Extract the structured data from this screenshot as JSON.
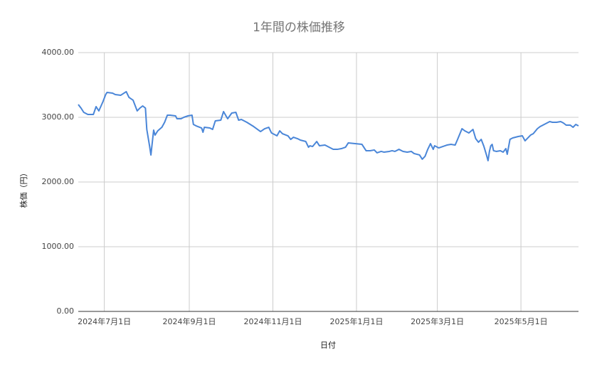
{
  "chart_data": {
    "type": "line",
    "title": "1年間の株価推移",
    "x_label": "日付",
    "y_label": "株価（円）",
    "x": [
      "2024-06-12",
      "2024-06-14",
      "2024-06-16",
      "2024-06-19",
      "2024-06-23",
      "2024-06-25",
      "2024-06-27",
      "2024-06-30",
      "2024-07-02",
      "2024-07-03",
      "2024-07-07",
      "2024-07-09",
      "2024-07-13",
      "2024-07-17",
      "2024-07-19",
      "2024-07-22",
      "2024-07-25",
      "2024-07-27",
      "2024-07-29",
      "2024-07-31",
      "2024-08-01",
      "2024-08-03",
      "2024-08-04",
      "2024-08-06",
      "2024-08-07",
      "2024-08-09",
      "2024-08-12",
      "2024-08-14",
      "2024-08-16",
      "2024-08-18",
      "2024-08-22",
      "2024-08-23",
      "2024-08-26",
      "2024-08-28",
      "2024-08-31",
      "2024-09-03",
      "2024-09-04",
      "2024-09-06",
      "2024-09-10",
      "2024-09-11",
      "2024-09-12",
      "2024-09-16",
      "2024-09-18",
      "2024-09-20",
      "2024-09-24",
      "2024-09-26",
      "2024-09-29",
      "2024-10-02",
      "2024-10-05",
      "2024-10-07",
      "2024-10-09",
      "2024-10-13",
      "2024-10-18",
      "2024-10-23",
      "2024-10-26",
      "2024-10-29",
      "2024-10-31",
      "2024-11-04",
      "2024-11-06",
      "2024-11-08",
      "2024-11-12",
      "2024-11-14",
      "2024-11-16",
      "2024-11-19",
      "2024-11-21",
      "2024-11-25",
      "2024-11-27",
      "2024-11-28",
      "2024-11-30",
      "2024-12-03",
      "2024-12-05",
      "2024-12-09",
      "2024-12-11",
      "2024-12-15",
      "2024-12-18",
      "2024-12-21",
      "2024-12-24",
      "2024-12-26",
      "2024-12-31",
      "2025-01-05",
      "2025-01-08",
      "2025-01-11",
      "2025-01-14",
      "2025-01-16",
      "2025-01-19",
      "2025-01-21",
      "2025-01-25",
      "2025-01-27",
      "2025-01-29",
      "2025-02-01",
      "2025-02-04",
      "2025-02-07",
      "2025-02-10",
      "2025-02-12",
      "2025-02-16",
      "2025-02-18",
      "2025-02-20",
      "2025-02-22",
      "2025-02-24",
      "2025-02-26",
      "2025-02-27",
      "2025-03-02",
      "2025-03-05",
      "2025-03-08",
      "2025-03-11",
      "2025-03-14",
      "2025-03-16",
      "2025-03-19",
      "2025-03-21",
      "2025-03-24",
      "2025-03-27",
      "2025-03-29",
      "2025-03-31",
      "2025-04-02",
      "2025-04-04",
      "2025-04-06",
      "2025-04-07",
      "2025-04-08",
      "2025-04-09",
      "2025-04-10",
      "2025-04-11",
      "2025-04-13",
      "2025-04-16",
      "2025-04-18",
      "2025-04-20",
      "2025-04-21",
      "2025-04-23",
      "2025-04-25",
      "2025-04-29",
      "2025-05-02",
      "2025-05-04",
      "2025-05-06",
      "2025-05-08",
      "2025-05-10",
      "2025-05-13",
      "2025-05-15",
      "2025-05-18",
      "2025-05-20",
      "2025-05-22",
      "2025-05-24",
      "2025-05-27",
      "2025-05-30",
      "2025-06-01",
      "2025-06-03",
      "2025-06-06",
      "2025-06-08",
      "2025-06-10",
      "2025-06-12"
    ],
    "series": [
      {
        "name": "株価",
        "color": "#4a86d8",
        "values": [
          3198,
          3143,
          3077,
          3044,
          3044,
          3165,
          3099,
          3242,
          3352,
          3385,
          3374,
          3352,
          3341,
          3396,
          3308,
          3264,
          3099,
          3143,
          3176,
          3143,
          2813,
          2560,
          2418,
          2802,
          2725,
          2791,
          2846,
          2923,
          3033,
          3033,
          3022,
          2978,
          2978,
          3000,
          3022,
          3033,
          2890,
          2868,
          2835,
          2769,
          2846,
          2835,
          2813,
          2945,
          2956,
          3088,
          2978,
          3066,
          3077,
          2956,
          2967,
          2923,
          2857,
          2780,
          2824,
          2846,
          2758,
          2714,
          2791,
          2747,
          2714,
          2659,
          2692,
          2670,
          2648,
          2626,
          2538,
          2560,
          2549,
          2626,
          2560,
          2571,
          2549,
          2505,
          2505,
          2516,
          2538,
          2604,
          2593,
          2582,
          2484,
          2484,
          2495,
          2451,
          2473,
          2462,
          2473,
          2484,
          2473,
          2505,
          2473,
          2462,
          2473,
          2440,
          2418,
          2352,
          2396,
          2505,
          2593,
          2505,
          2560,
          2527,
          2549,
          2571,
          2582,
          2571,
          2670,
          2824,
          2791,
          2758,
          2813,
          2670,
          2615,
          2659,
          2549,
          2407,
          2330,
          2473,
          2560,
          2582,
          2484,
          2473,
          2484,
          2462,
          2516,
          2429,
          2659,
          2681,
          2703,
          2714,
          2637,
          2681,
          2725,
          2747,
          2824,
          2857,
          2890,
          2912,
          2934,
          2923,
          2923,
          2934,
          2912,
          2879,
          2879,
          2846,
          2890,
          2868
        ]
      }
    ],
    "xlim": [
      "2024-06-12",
      "2025-06-12"
    ],
    "xticks": [
      {
        "value": "2024-07-01",
        "label": "2024年7月1日"
      },
      {
        "value": "2024-09-01",
        "label": "2024年9月1日"
      },
      {
        "value": "2024-11-01",
        "label": "2024年11月1日"
      },
      {
        "value": "2025-01-01",
        "label": "2025年1月1日"
      },
      {
        "value": "2025-03-01",
        "label": "2025年3月1日"
      },
      {
        "value": "2025-05-01",
        "label": "2025年5月1日"
      }
    ],
    "ylim": [
      0,
      4000
    ],
    "yticks": [
      {
        "value": 0,
        "label": "0.00"
      },
      {
        "value": 1000,
        "label": "1000.00"
      },
      {
        "value": 2000,
        "label": "2000.00"
      },
      {
        "value": 3000,
        "label": "3000.00"
      },
      {
        "value": 4000,
        "label": "4000.00"
      }
    ],
    "grid": true
  }
}
